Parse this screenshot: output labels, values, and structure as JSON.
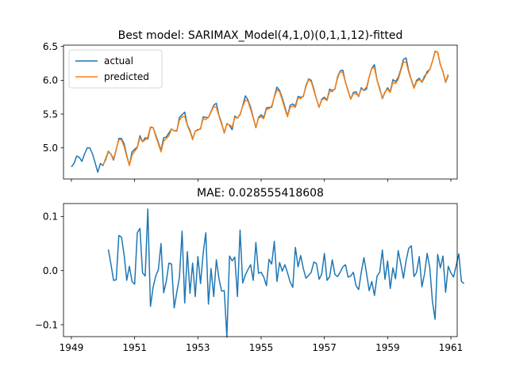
{
  "chart_data": [
    {
      "type": "line",
      "title": "Best model: SARIMAX_Model(4,1,0)(0,1,1,12)-fitted",
      "xlabel": "",
      "ylabel": "",
      "xlim": [
        1948.75,
        1961.2
      ],
      "ylim": [
        4.54,
        6.52
      ],
      "grid": false,
      "legend_position": "top-left",
      "yticks": [
        "5.0",
        "5.5",
        "6.0",
        "6.5"
      ],
      "ytick_values": [
        5.0,
        5.5,
        6.0,
        6.5
      ],
      "xtick_values": [
        1949,
        1951,
        1953,
        1955,
        1957,
        1959,
        1961
      ],
      "x_start": 1949.0,
      "x_step": 0.0833333,
      "series": [
        {
          "name": "actual",
          "color": "#1f77b4",
          "values": [
            4.72,
            4.77,
            4.88,
            4.86,
            4.8,
            4.91,
            5.0,
            5.0,
            4.91,
            4.78,
            4.64,
            4.77,
            4.74,
            4.84,
            4.95,
            4.91,
            4.82,
            4.97,
            5.14,
            5.14,
            5.06,
            4.89,
            4.74,
            4.94,
            4.98,
            5.01,
            5.18,
            5.09,
            5.15,
            5.13,
            5.3,
            5.3,
            5.19,
            5.08,
            4.96,
            5.15,
            5.16,
            5.22,
            5.28,
            5.25,
            5.25,
            5.45,
            5.49,
            5.53,
            5.34,
            5.26,
            5.13,
            5.25,
            5.27,
            5.28,
            5.46,
            5.45,
            5.45,
            5.54,
            5.63,
            5.66,
            5.48,
            5.37,
            5.22,
            5.36,
            5.33,
            5.27,
            5.47,
            5.44,
            5.49,
            5.62,
            5.77,
            5.71,
            5.6,
            5.45,
            5.3,
            5.45,
            5.49,
            5.45,
            5.59,
            5.6,
            5.6,
            5.76,
            5.9,
            5.85,
            5.74,
            5.61,
            5.47,
            5.63,
            5.65,
            5.62,
            5.76,
            5.75,
            5.76,
            5.92,
            6.02,
            6.0,
            5.87,
            5.72,
            5.6,
            5.72,
            5.75,
            5.71,
            5.87,
            5.85,
            5.87,
            6.05,
            6.14,
            6.15,
            5.97,
            5.85,
            5.72,
            5.82,
            5.83,
            5.76,
            5.89,
            5.85,
            5.87,
            6.05,
            6.18,
            6.23,
            6.0,
            5.88,
            5.73,
            5.82,
            5.89,
            5.83,
            6.01,
            5.98,
            6.04,
            6.16,
            6.31,
            6.33,
            6.14,
            6.01,
            5.89,
            6.0,
            6.03,
            5.97,
            6.04,
            6.13,
            6.16,
            6.28,
            6.43,
            6.41,
            6.23,
            6.13,
            5.97,
            6.07
          ]
        },
        {
          "name": "predicted",
          "color": "#ff7f0e",
          "x_start": 1950.0,
          "values": [
            4.75,
            4.82,
            4.94,
            4.91,
            4.84,
            4.98,
            5.12,
            5.12,
            5.02,
            4.87,
            4.74,
            4.89,
            4.95,
            5.0,
            5.15,
            5.09,
            5.12,
            5.16,
            5.31,
            5.3,
            5.17,
            5.06,
            4.94,
            5.1,
            5.14,
            5.18,
            5.28,
            5.25,
            5.26,
            5.41,
            5.46,
            5.47,
            5.33,
            5.24,
            5.12,
            5.25,
            5.26,
            5.29,
            5.43,
            5.42,
            5.45,
            5.53,
            5.61,
            5.6,
            5.47,
            5.35,
            5.23,
            5.35,
            5.34,
            5.31,
            5.45,
            5.44,
            5.5,
            5.61,
            5.71,
            5.69,
            5.57,
            5.44,
            5.31,
            5.44,
            5.46,
            5.43,
            5.57,
            5.58,
            5.62,
            5.75,
            5.86,
            5.83,
            5.71,
            5.58,
            5.46,
            5.6,
            5.62,
            5.6,
            5.74,
            5.73,
            5.77,
            5.9,
            6.01,
            5.98,
            5.85,
            5.72,
            5.6,
            5.71,
            5.73,
            5.7,
            5.84,
            5.83,
            5.88,
            6.03,
            6.13,
            6.11,
            5.97,
            5.84,
            5.72,
            5.8,
            5.8,
            5.77,
            5.87,
            5.86,
            5.9,
            6.05,
            6.18,
            6.18,
            6.0,
            5.86,
            5.74,
            5.83,
            5.87,
            5.82,
            5.97,
            5.95,
            6.01,
            6.14,
            6.27,
            6.27,
            6.12,
            6.0,
            5.88,
            5.98,
            6.01,
            5.98,
            6.07,
            6.1,
            6.16,
            6.28,
            6.42,
            6.42,
            6.24,
            6.12,
            5.98,
            6.09
          ]
        }
      ]
    },
    {
      "type": "line",
      "title": "MAE: 0.028555418608",
      "xlabel": "",
      "ylabel": "",
      "xlim": [
        1948.75,
        1961.2
      ],
      "ylim": [
        -0.122,
        0.124
      ],
      "grid": false,
      "yticks": [
        "0.1",
        "0.0",
        "−0.1"
      ],
      "ytick_values": [
        0.1,
        0.0,
        -0.1
      ],
      "xticks": [
        "1949",
        "1951",
        "1953",
        "1955",
        "1957",
        "1959",
        "1961"
      ],
      "xtick_values": [
        1949,
        1951,
        1953,
        1955,
        1957,
        1959,
        1961
      ],
      "series": [
        {
          "name": "",
          "color": "#1f77b4",
          "x_start": 1950.1667,
          "x_step": 0.0833333,
          "values": [
            0.039,
            0.012,
            -0.018,
            -0.017,
            0.065,
            0.062,
            0.029,
            -0.018,
            0.008,
            -0.02,
            -0.025,
            0.07,
            0.078,
            -0.004,
            -0.01,
            0.114,
            -0.066,
            -0.031,
            -0.01,
            0.002,
            0.05,
            -0.041,
            -0.02,
            0.014,
            0.012,
            -0.069,
            -0.04,
            -0.012,
            0.073,
            -0.06,
            0.035,
            -0.042,
            0.014,
            -0.048,
            0.026,
            -0.024,
            0.032,
            0.07,
            -0.062,
            0.004,
            -0.048,
            0.02,
            -0.015,
            -0.038,
            -0.037,
            -0.123,
            0.027,
            0.018,
            0.025,
            -0.048,
            0.075,
            -0.023,
            -0.008,
            0.002,
            0.011,
            -0.018,
            0.052,
            -0.005,
            -0.003,
            -0.012,
            -0.028,
            0.021,
            0.012,
            0.054,
            -0.02,
            0.015,
            -0.001,
            0.011,
            -0.004,
            -0.021,
            -0.031,
            0.043,
            0.007,
            0.028,
            0.004,
            -0.014,
            -0.009,
            -0.003,
            0.016,
            0.013,
            -0.016,
            -0.006,
            0.032,
            -0.018,
            -0.011,
            0.02,
            -0.007,
            -0.011,
            -0.003,
            0.007,
            0.011,
            -0.012,
            -0.01,
            -0.003,
            -0.028,
            -0.035,
            -0.003,
            0.024,
            -0.005,
            -0.037,
            -0.02,
            -0.046,
            -0.01,
            -0.003,
            0.038,
            -0.016,
            0.018,
            -0.033,
            0.005,
            -0.015,
            0.037,
            0.013,
            -0.014,
            0.018,
            0.041,
            0.046,
            -0.011,
            -0.003,
            0.026,
            -0.03,
            -0.006,
            0.032,
            0.005,
            -0.057,
            -0.09,
            0.03,
            0.005,
            0.027,
            -0.04,
            0.008,
            -0.004,
            -0.012,
            0.009,
            0.031,
            -0.02,
            -0.024
          ]
        }
      ]
    }
  ]
}
